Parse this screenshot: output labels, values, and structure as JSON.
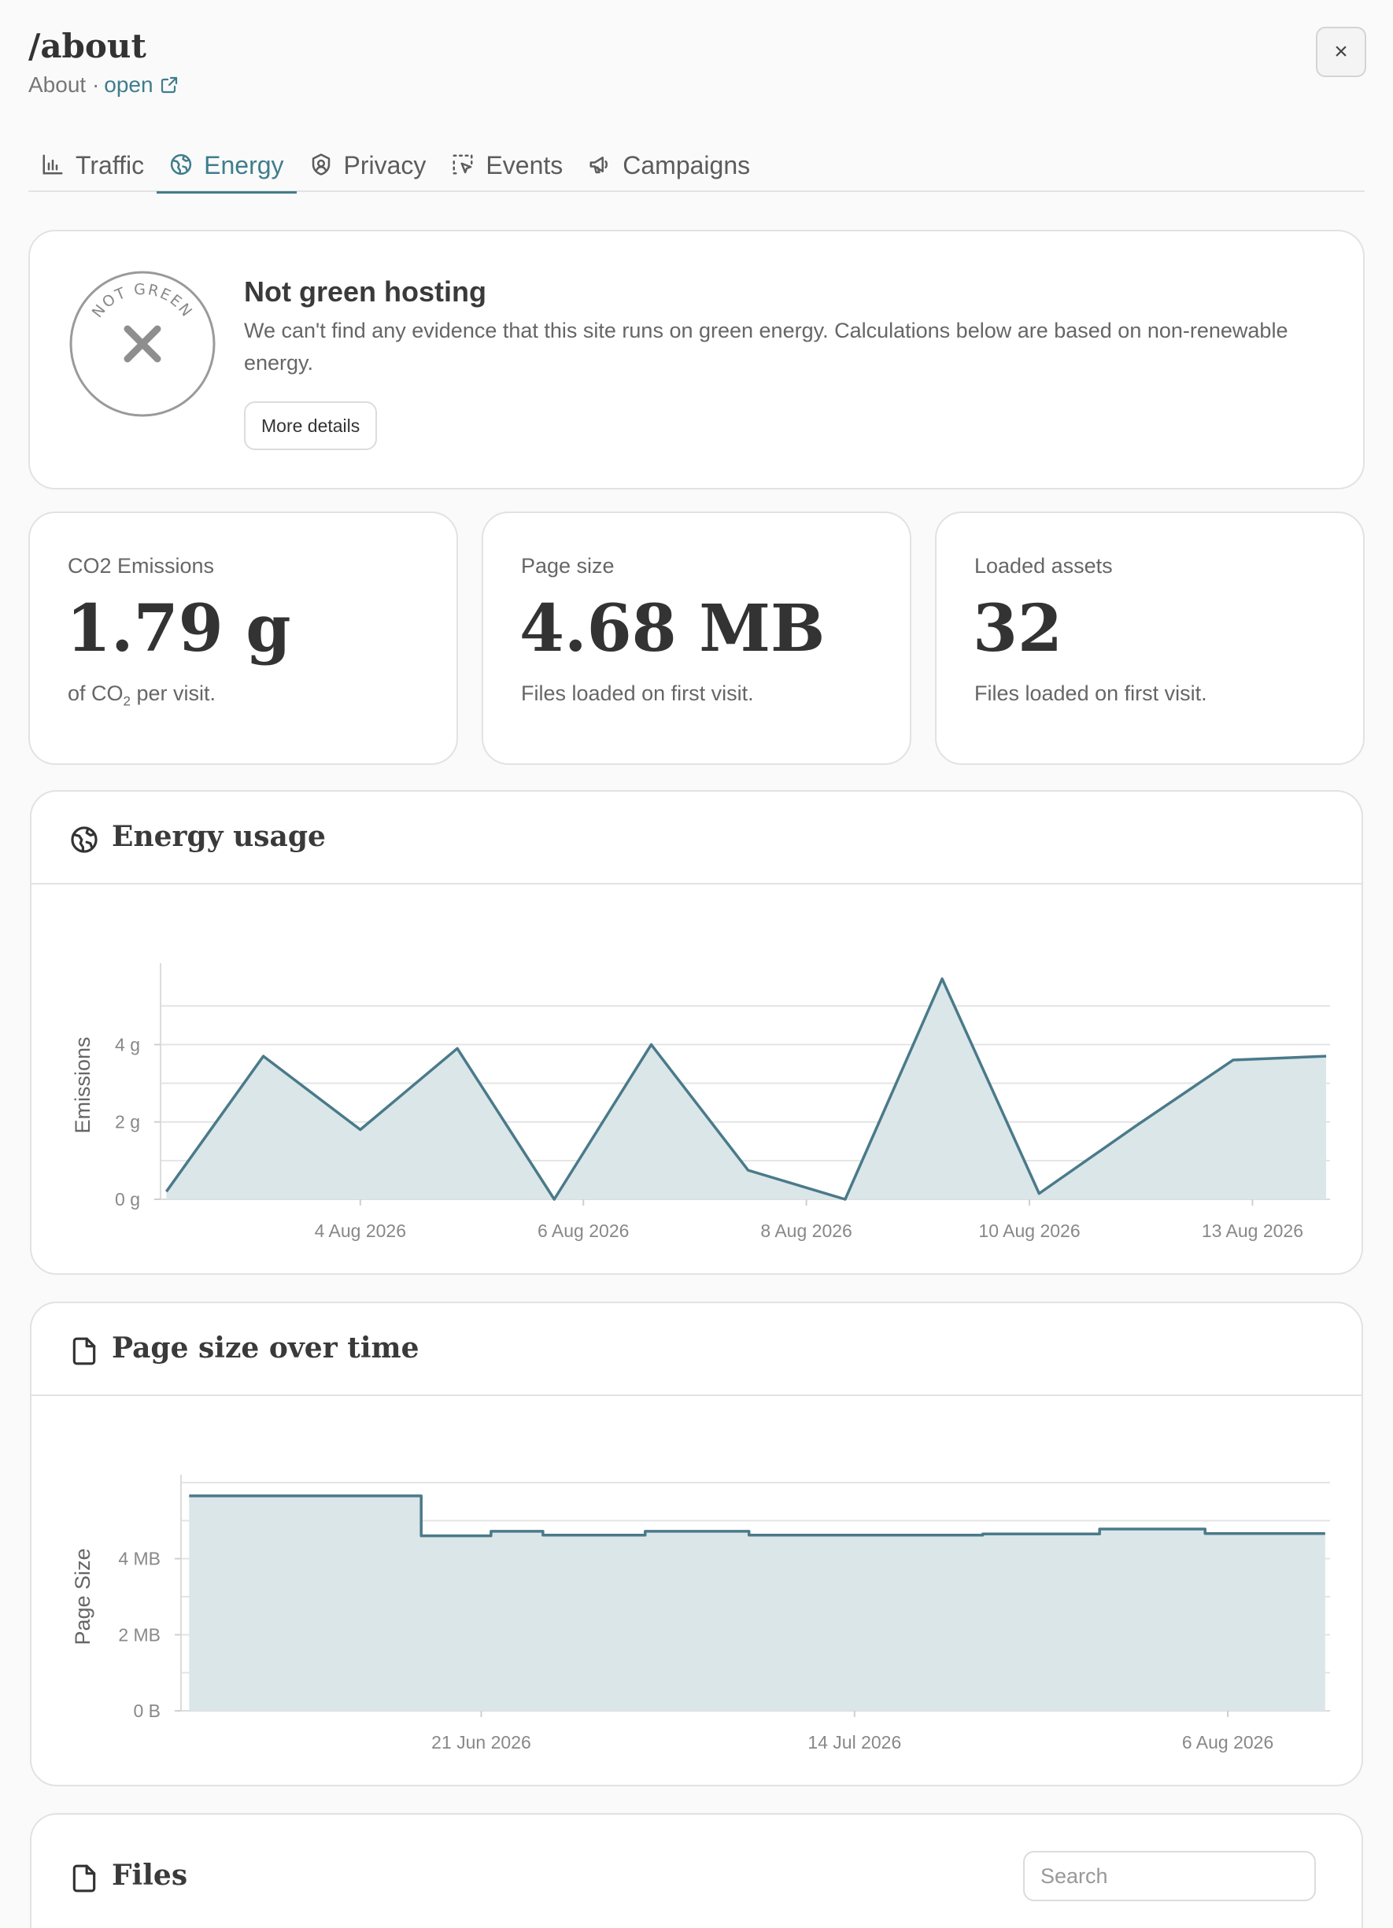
{
  "header": {
    "title": "/about",
    "subtitle_text": "About ·",
    "link_label": "open",
    "close_symbol": "×"
  },
  "tabs": [
    {
      "label": "Traffic",
      "icon": "bar-chart-icon",
      "active": false
    },
    {
      "label": "Energy",
      "icon": "globe-leaf-icon",
      "active": true
    },
    {
      "label": "Privacy",
      "icon": "shield-icon",
      "active": false
    },
    {
      "label": "Events",
      "icon": "cursor-select-icon",
      "active": false
    },
    {
      "label": "Campaigns",
      "icon": "megaphone-icon",
      "active": false
    }
  ],
  "hosting": {
    "badge_text": "NOT GREEN",
    "title": "Not green hosting",
    "description": "We can't find any evidence that this site runs on green energy. Calculations below are based on non-renewable energy.",
    "details_button": "More details"
  },
  "stats": [
    {
      "label": "CO2 Emissions",
      "value": "1.79 g",
      "desc_pre": "of CO",
      "desc_sub": "2",
      "desc_post": " per visit."
    },
    {
      "label": "Page size",
      "value": "4.68 MB",
      "desc_pre": "Files loaded on first visit.",
      "desc_sub": "",
      "desc_post": ""
    },
    {
      "label": "Loaded assets",
      "value": "32",
      "desc_pre": "Files loaded on first visit.",
      "desc_sub": "",
      "desc_post": ""
    }
  ],
  "energy_chart": {
    "title": "Energy usage",
    "icon": "globe-leaf-icon"
  },
  "size_chart": {
    "title": "Page size over time",
    "icon": "file-icon"
  },
  "files": {
    "title": "Files",
    "icon": "file-icon",
    "search_placeholder": "Search"
  },
  "colors": {
    "accent": "#3f7d8c",
    "line": "#4a7a8a",
    "area": "#dae6e8"
  },
  "chart_data": [
    {
      "type": "area",
      "ylabel": "Emissions",
      "xlabel": "",
      "ylim": [
        0,
        5.9
      ],
      "y_ticks": [
        {
          "v": 0,
          "label": "0 g"
        },
        {
          "v": 2,
          "label": "2 g"
        },
        {
          "v": 4,
          "label": "4 g"
        }
      ],
      "x_ticks": [
        {
          "t": 2.0,
          "label": "4 Aug 2026"
        },
        {
          "t": 3.15,
          "label": "6 Aug 2026"
        },
        {
          "t": 4.3,
          "label": "8 Aug 2026"
        },
        {
          "t": 5.45,
          "label": "10 Aug 2026"
        },
        {
          "t": 6.6,
          "label": "13 Aug 2026"
        }
      ],
      "x_range": [
        0.97,
        7.0
      ],
      "series": [
        {
          "x": [
            1.0,
            1.5,
            2.0,
            2.5,
            3.0,
            3.5,
            4.0,
            4.5,
            5.0,
            5.5,
            6.0,
            6.5,
            6.98
          ],
          "y": [
            0.2,
            3.7,
            1.8,
            3.9,
            0.0,
            4.0,
            0.75,
            0.0,
            5.7,
            0.15,
            1.9,
            3.6,
            3.7
          ]
        }
      ],
      "grid": true
    },
    {
      "type": "area",
      "ylabel": "Page Size",
      "xlabel": "",
      "ylim": [
        0,
        6.0
      ],
      "y_ticks": [
        {
          "v": 0,
          "label": "0 B"
        },
        {
          "v": 2,
          "label": "2 MB"
        },
        {
          "v": 4,
          "label": "4 MB"
        }
      ],
      "x_ticks": [
        {
          "t": 32.0,
          "label": "21 Jun 2026"
        },
        {
          "t": 55.0,
          "label": "14 Jul 2026"
        },
        {
          "t": 78.0,
          "label": "6 Aug 2026"
        }
      ],
      "x_range": [
        13.5,
        84.3
      ],
      "series": [
        {
          "x": [
            14,
            28.3,
            28.3,
            32.6,
            32.6,
            35.8,
            35.8,
            42.1,
            42.1,
            48.5,
            48.5,
            62.9,
            62.9,
            70.1,
            70.1,
            76.6,
            76.6,
            84
          ],
          "y": [
            5.65,
            5.65,
            4.6,
            4.6,
            4.72,
            4.72,
            4.62,
            4.62,
            4.72,
            4.72,
            4.62,
            4.62,
            4.65,
            4.65,
            4.78,
            4.78,
            4.66,
            4.66
          ]
        }
      ],
      "grid": true
    }
  ]
}
